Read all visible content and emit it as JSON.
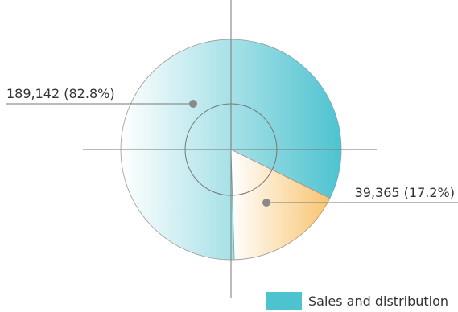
{
  "chart_data": {
    "type": "pie",
    "title": "",
    "slices": [
      {
        "name": "",
        "value": 189142,
        "percent": 82.8,
        "label": "189,142 (82.8%)",
        "color": "#4ec3d0"
      },
      {
        "name": "",
        "value": 39365,
        "percent": 17.2,
        "label": "39,365 (17.2%)",
        "color": "#f9c46f"
      }
    ],
    "legend": {
      "placement": "bottom-right",
      "entries": [
        {
          "label": "Sales and distribution",
          "color": "#4ec3d0"
        }
      ]
    },
    "crosshair": true,
    "inner_ring": true,
    "colors": {
      "lines": "#777777",
      "marker": "#8a8a8a",
      "highlight": "#ffffff"
    }
  }
}
